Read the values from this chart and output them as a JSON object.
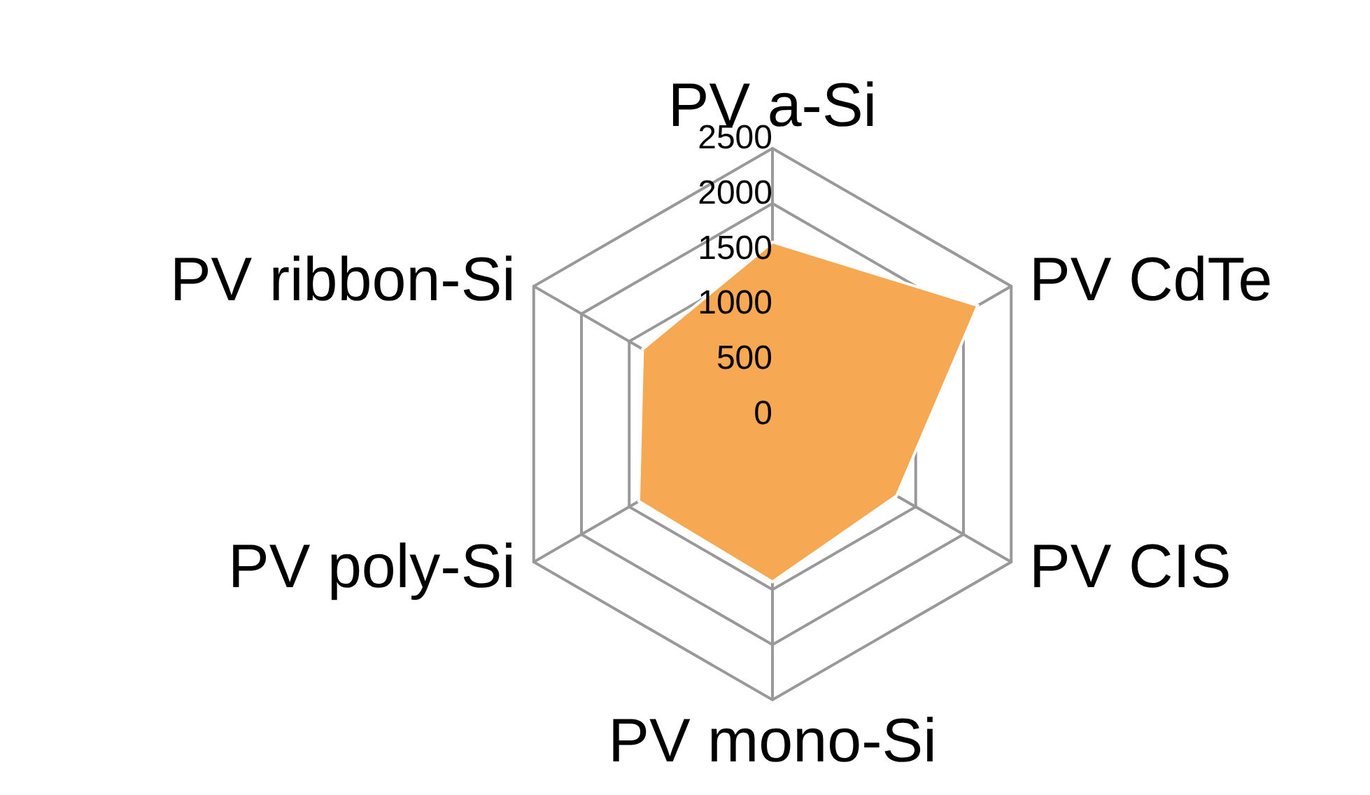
{
  "chart_data": {
    "type": "radar",
    "categories": [
      "PV a-Si",
      "PV CdTe",
      "PV CIS",
      "PV mono-Si",
      "PV poly-Si",
      "PV ribbon-Si"
    ],
    "series": [
      {
        "color": "#f7a853",
        "values": [
          1650,
          2150,
          1300,
          1430,
          1400,
          1360
        ]
      }
    ],
    "ylim": [
      0,
      2500
    ],
    "yticks": [
      0,
      500,
      1000,
      1500,
      2000,
      2500
    ],
    "grid": true
  }
}
